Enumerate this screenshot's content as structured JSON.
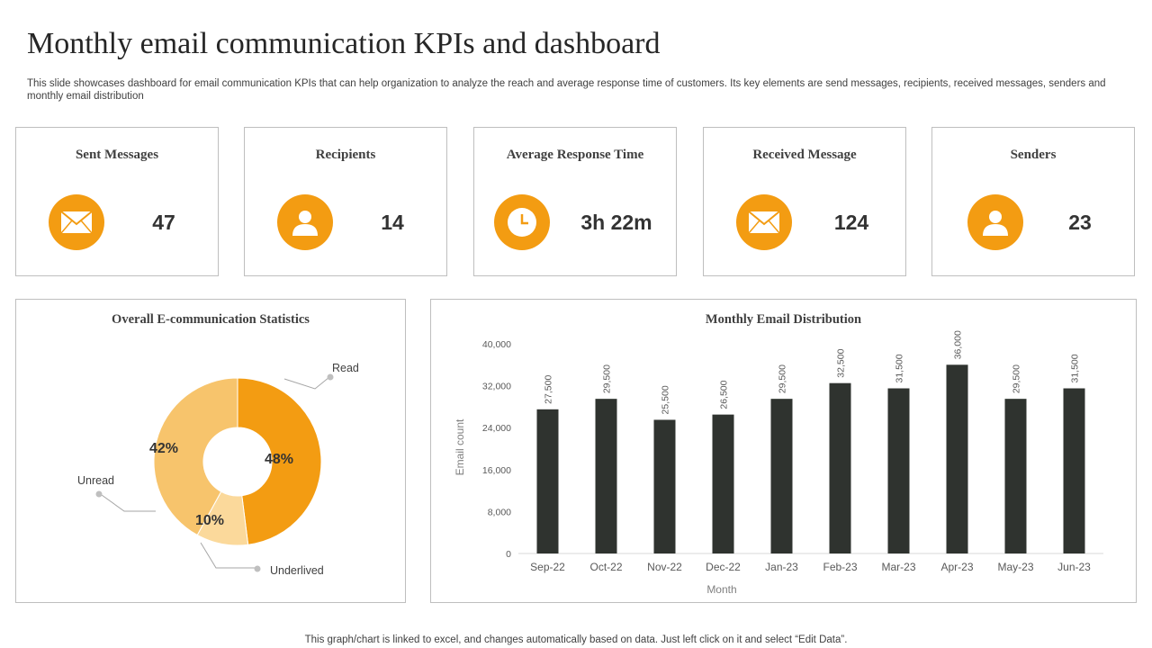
{
  "page": {
    "title": "Monthly email communication KPIs and dashboard",
    "subtitle": "This slide showcases dashboard for email communication KPIs  that can help organization to analyze the reach and average response time of customers. Its key elements are send messages, recipients, received messages, senders and monthly email distribution",
    "footer": "This graph/chart is linked to excel,  and changes automatically based on data. Just left click on it and select “Edit Data”."
  },
  "kpis": [
    {
      "label": "Sent Messages",
      "value": "47",
      "icon": "envelope-icon"
    },
    {
      "label": "Recipients",
      "value": "14",
      "icon": "user-icon"
    },
    {
      "label": "Average Response Time",
      "value": "3h 22m",
      "icon": "clock-icon"
    },
    {
      "label": "Received Message",
      "value": "124",
      "icon": "envelope-icon"
    },
    {
      "label": "Senders",
      "value": "23",
      "icon": "user-icon"
    }
  ],
  "colors": {
    "accent": "#f39c12",
    "read": "#f39c12",
    "unread": "#f7c46c",
    "underlived": "#fbd99b",
    "bars": "#2f332f"
  },
  "chart_data": [
    {
      "type": "pie",
      "title": "Overall E-communication  Statistics",
      "donut": true,
      "labels": [
        "Read",
        "Underlived",
        "Unread"
      ],
      "values": [
        48,
        10,
        42
      ],
      "value_labels": [
        "48%",
        "10%",
        "42%"
      ]
    },
    {
      "type": "bar",
      "title": "Monthly Email Distribution",
      "categories": [
        "Sep-22",
        "Oct-22",
        "Nov-22",
        "Dec-22",
        "Jan-23",
        "Feb-23",
        "Mar-23",
        "Apr-23",
        "May-23",
        "Jun-23"
      ],
      "values": [
        27500,
        29500,
        25500,
        26500,
        29500,
        32500,
        31500,
        36000,
        29500,
        31500
      ],
      "value_labels": [
        "27,500",
        "29,500",
        "25,500",
        "26,500",
        "29,500",
        "32,500",
        "31,500",
        "36,000",
        "29,500",
        "31,500"
      ],
      "xlabel": "Month",
      "ylabel": "Email count",
      "ylim": [
        0,
        40000
      ],
      "yticks": [
        0,
        8000,
        16000,
        24000,
        32000,
        40000
      ],
      "ytick_labels": [
        "0",
        "8,000",
        "16,000",
        "24,000",
        "32,000",
        "40,000"
      ],
      "grid": false,
      "legend": "none"
    }
  ]
}
